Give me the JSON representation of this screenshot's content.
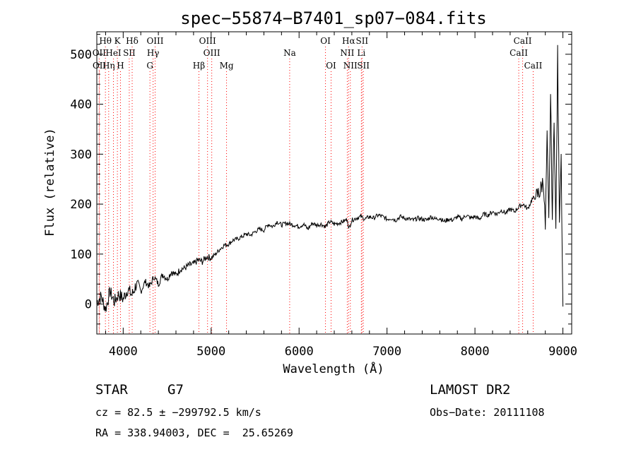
{
  "chart_data": {
    "type": "line",
    "title": "spec−55874−B7401_sp07−084.fits",
    "xlabel": "Wavelength (Å)",
    "ylabel": "Flux (relative)",
    "xlim": [
      3700,
      9100
    ],
    "ylim": [
      -60,
      545
    ],
    "xticks": [
      4000,
      5000,
      6000,
      7000,
      8000,
      9000
    ],
    "yticks": [
      0,
      100,
      200,
      300,
      400,
      500
    ],
    "grid": false,
    "series": [
      {
        "x": [
          3700,
          3750,
          3800,
          3850,
          3900,
          3950,
          4000,
          4050,
          4100,
          4150,
          4200,
          4250,
          4300,
          4350,
          4400,
          4450,
          4500,
          4550,
          4600,
          4650,
          4700,
          4750,
          4800,
          4850,
          4900,
          4950,
          5000,
          5050,
          5100,
          5150,
          5200,
          5250,
          5300,
          5350,
          5400,
          5450,
          5500,
          5550,
          5600,
          5650,
          5700,
          5750,
          5800,
          5850,
          5900,
          5950,
          6000,
          6050,
          6100,
          6150,
          6200,
          6250,
          6300,
          6350,
          6400,
          6450,
          6500,
          6550,
          6564,
          6600,
          6650,
          6700,
          6750,
          6800,
          6850,
          6900,
          6950,
          7000,
          7050,
          7100,
          7150,
          7200,
          7250,
          7300,
          7350,
          7400,
          7450,
          7500,
          7550,
          7600,
          7650,
          7700,
          7750,
          7800,
          7850,
          7900,
          7950,
          8000,
          8050,
          8100,
          8150,
          8200,
          8250,
          8300,
          8350,
          8400,
          8450,
          8500,
          8550,
          8600,
          8650,
          8700,
          8750,
          8780,
          8800,
          8820,
          8840,
          8860,
          8880,
          8900,
          8920,
          8940,
          8960,
          8980,
          9000
        ],
        "y": [
          5,
          15,
          -10,
          25,
          5,
          20,
          10,
          30,
          18,
          40,
          25,
          45,
          35,
          55,
          40,
          60,
          50,
          65,
          58,
          70,
          72,
          78,
          80,
          88,
          85,
          95,
          92,
          100,
          110,
          118,
          120,
          128,
          130,
          135,
          140,
          138,
          145,
          150,
          148,
          160,
          155,
          165,
          158,
          162,
          160,
          158,
          155,
          160,
          150,
          162,
          158,
          160,
          155,
          165,
          160,
          162,
          165,
          170,
          150,
          168,
          172,
          175,
          170,
          175,
          172,
          178,
          175,
          170,
          172,
          168,
          175,
          172,
          170,
          168,
          172,
          170,
          168,
          175,
          170,
          172,
          165,
          170,
          168,
          175,
          170,
          178,
          172,
          175,
          170,
          180,
          178,
          185,
          180,
          188,
          182,
          190,
          185,
          195,
          200,
          190,
          210,
          215,
          230,
          250,
          150,
          330,
          160,
          420,
          170,
          380,
          140,
          500,
          180,
          300,
          -5
        ]
      }
    ],
    "lines": [
      {
        "label": "Hθ",
        "x": 3798,
        "row": 0
      },
      {
        "label": "K",
        "x": 3934,
        "row": 0
      },
      {
        "label": "Hδ",
        "x": 4102,
        "row": 0
      },
      {
        "label": "OIII",
        "x": 4363,
        "row": 0
      },
      {
        "label": "OIII",
        "x": 4959,
        "row": 0
      },
      {
        "label": "OI",
        "x": 6300,
        "row": 0
      },
      {
        "label": "Hα",
        "x": 6563,
        "row": 0
      },
      {
        "label": "SII",
        "x": 6716,
        "row": 0
      },
      {
        "label": "CaII",
        "x": 8542,
        "row": 0
      },
      {
        "label": "OII",
        "x": 3727,
        "row": 1
      },
      {
        "label": "HeI",
        "x": 3889,
        "row": 1
      },
      {
        "label": "SII",
        "x": 4069,
        "row": 1
      },
      {
        "label": "Hγ",
        "x": 4340,
        "row": 1
      },
      {
        "label": "OIII",
        "x": 5007,
        "row": 1
      },
      {
        "label": "Na",
        "x": 5893,
        "row": 1
      },
      {
        "label": "NII",
        "x": 6548,
        "row": 1
      },
      {
        "label": "Li",
        "x": 6708,
        "row": 1
      },
      {
        "label": "CaII",
        "x": 8498,
        "row": 1
      },
      {
        "label": "OII",
        "x": 3729,
        "row": 2
      },
      {
        "label": "Hη",
        "x": 3835,
        "row": 2
      },
      {
        "label": "H",
        "x": 3969,
        "row": 2
      },
      {
        "label": "G",
        "x": 4304,
        "row": 2
      },
      {
        "label": "Hβ",
        "x": 4861,
        "row": 2
      },
      {
        "label": "Mg",
        "x": 5175,
        "row": 2
      },
      {
        "label": "OI",
        "x": 6364,
        "row": 2
      },
      {
        "label": "NII",
        "x": 6583,
        "row": 2
      },
      {
        "label": "SII",
        "x": 6731,
        "row": 2
      },
      {
        "label": "CaII",
        "x": 8662,
        "row": 2
      }
    ]
  },
  "info": {
    "object_class": "STAR",
    "subclass": "G7",
    "survey": "LAMOST DR2",
    "cz": "cz = 82.5 ± −299792.5 km/s",
    "obs_date": "Obs−Date: 20111108",
    "coords": "RA = 338.94003, DEC =  25.65269"
  },
  "colors": {
    "spectrum": "#000000",
    "line_markers": "#ff0000",
    "axes": "#000000"
  }
}
